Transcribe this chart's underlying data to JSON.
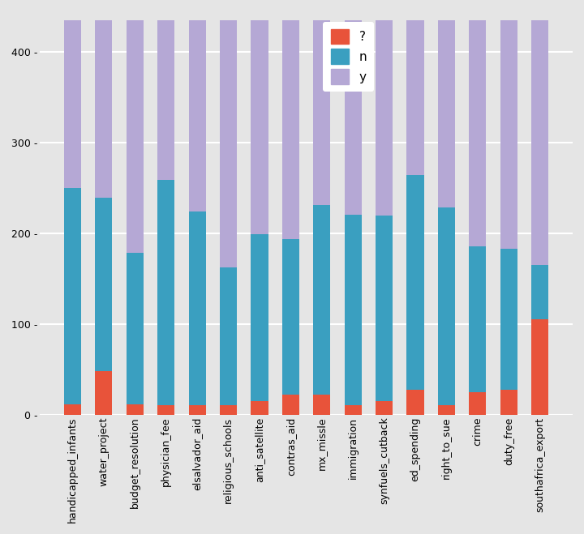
{
  "categories": [
    "handicapped_infants",
    "water_project",
    "budget_resolution",
    "physician_fee",
    "elsalvador_aid",
    "religious_schools",
    "anti_satellite",
    "contras_aid",
    "mx_missle",
    "immigration",
    "synfuels_cutback",
    "ed_spending",
    "right_to_sue",
    "crime",
    "duty_free",
    "southafrica_export"
  ],
  "question_vals": [
    12,
    48,
    12,
    11,
    11,
    11,
    15,
    22,
    22,
    11,
    15,
    28,
    11,
    25,
    28,
    105
  ],
  "n_vals": [
    238,
    191,
    167,
    248,
    213,
    152,
    184,
    172,
    209,
    210,
    205,
    236,
    218,
    161,
    155,
    60
  ],
  "y_vals": [
    185,
    196,
    256,
    176,
    211,
    272,
    236,
    241,
    204,
    214,
    215,
    171,
    206,
    249,
    252,
    270
  ],
  "colors": {
    "question": "#e8533a",
    "n": "#3a9fc0",
    "y": "#b5a8d5"
  },
  "legend_labels": [
    "?",
    "n",
    "y"
  ],
  "ylim": [
    0,
    445
  ],
  "yticks": [
    0,
    100,
    200,
    300,
    400
  ],
  "background_color": "#e5e5e5",
  "grid_color": "white",
  "bar_width": 0.55
}
